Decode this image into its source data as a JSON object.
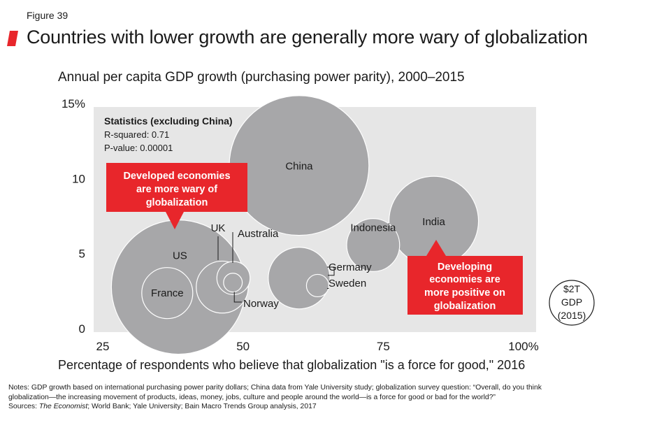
{
  "figure_label": "Figure 39",
  "title": "Countries with lower growth are generally more wary of globalization",
  "colors": {
    "accent": "#e8262b",
    "plot_bg": "#e6e6e6",
    "bubble": "#a7a7a9",
    "bubble_edge": "#ffffff"
  },
  "notes": {
    "line1": "Notes: GDP growth based on international purchasing power parity dollars; China data from Yale University study; globalization survey question: “Overall, do you think",
    "line2": "globalization—the increasing movement of products, ideas, money, jobs, culture and people around the world—is a force for good or bad for the world?”",
    "sources_prefix": "Sources: ",
    "sources_italic": "The Economist",
    "sources_rest": "; World Bank; Yale University; Bain Macro Trends Group analysis, 2017"
  },
  "chart_data": {
    "type": "bubble",
    "ylabel": "Annual per capita GDP growth (purchasing power parity), 2000–2015",
    "xlabel": "Percentage of respondents who believe that globalization \"is a force for good,\" 2016",
    "xlim": [
      25,
      100
    ],
    "ylim": [
      0,
      15
    ],
    "x_ticks": [
      {
        "value": 25,
        "label": "25"
      },
      {
        "value": 50,
        "label": "50"
      },
      {
        "value": 75,
        "label": "75"
      },
      {
        "value": 100,
        "label": "100%"
      }
    ],
    "y_ticks": [
      {
        "value": 0,
        "label": "0"
      },
      {
        "value": 5,
        "label": "5"
      },
      {
        "value": 10,
        "label": "10"
      },
      {
        "value": 15,
        "label": "15%"
      }
    ],
    "points": [
      {
        "name": "US",
        "x": 38.5,
        "y": 3.0,
        "gdp_trillion": 18.0
      },
      {
        "name": "France",
        "x": 36.5,
        "y": 2.6,
        "gdp_trillion": 2.6
      },
      {
        "name": "UK",
        "x": 46.3,
        "y": 3.0,
        "gdp_trillion": 2.7
      },
      {
        "name": "Australia",
        "x": 48.3,
        "y": 3.6,
        "gdp_trillion": 1.1
      },
      {
        "name": "Norway",
        "x": 48.2,
        "y": 3.3,
        "gdp_trillion": 0.35
      },
      {
        "name": "China",
        "x": 60.0,
        "y": 11.1,
        "gdp_trillion": 19.5
      },
      {
        "name": "Germany",
        "x": 60.0,
        "y": 3.6,
        "gdp_trillion": 3.8
      },
      {
        "name": "Sweden",
        "x": 63.3,
        "y": 3.1,
        "gdp_trillion": 0.5
      },
      {
        "name": "Indonesia",
        "x": 73.2,
        "y": 5.8,
        "gdp_trillion": 2.8
      },
      {
        "name": "India",
        "x": 84.0,
        "y": 7.4,
        "gdp_trillion": 8.0
      }
    ],
    "statistics": {
      "heading": "Statistics (excluding China)",
      "r_squared": "R-squared: 0.71",
      "p_value": "P-value: 0.00001"
    },
    "callouts": [
      {
        "lines": [
          "Developed economies",
          "are more wary of",
          "globalization"
        ]
      },
      {
        "lines": [
          "Developing",
          "economies are",
          "more positive on",
          "globalization"
        ]
      }
    ],
    "size_legend": {
      "lines": [
        "$2T",
        "GDP",
        "(2015)"
      ],
      "gdp_trillion": 2.0
    }
  }
}
